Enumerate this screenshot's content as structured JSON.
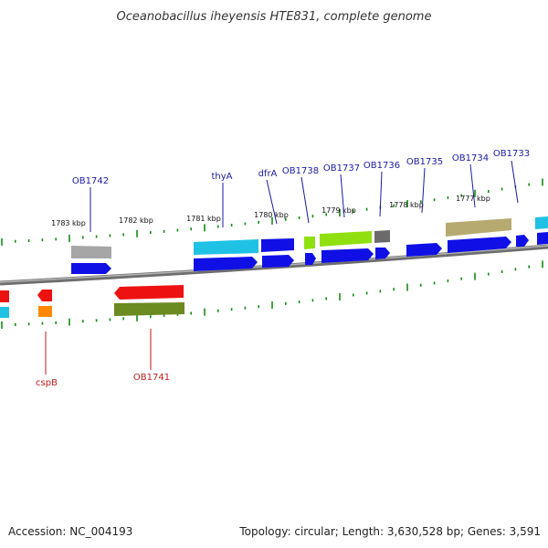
{
  "title": "Oceanobacillus iheyensis HTE831, complete genome",
  "footer": {
    "accession": "Accession: NC_004193",
    "summary": "Topology: circular; Length: 3,630,528 bp; Genes: 3,591"
  },
  "colors": {
    "blue": "#1010e6",
    "red": "#ee1111",
    "cyan": "#20c8e8",
    "grey": "#9e9e9e",
    "darkgrey": "#6a6a6a",
    "lime": "#90e010",
    "olive": "#6b8a20",
    "khaki": "#b6aa70",
    "orange": "#ff8800",
    "tick": "#138c13",
    "backbone": "#7d7d7d",
    "label_blue": "#1a1aa6",
    "label_red": "#c41a1a"
  },
  "scale_labels": [
    "1783 kbp",
    "1782 kbp",
    "1781 kbp",
    "1780 kbp",
    "1779 kbp",
    "1778 kbp",
    "1777 kbp"
  ],
  "gene_labels_forward": [
    "OB1742",
    "thyA",
    "dfrA",
    "OB1738",
    "OB1737",
    "OB1736",
    "OB1735",
    "OB1734",
    "OB1733"
  ],
  "gene_labels_reverse": [
    "cspB",
    "OB1741"
  ]
}
